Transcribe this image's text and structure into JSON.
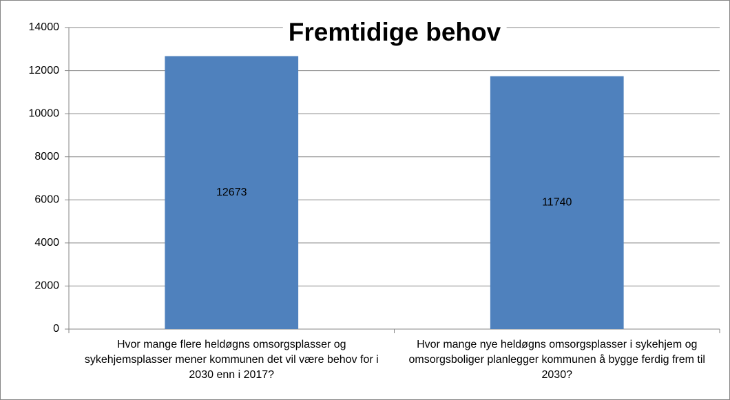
{
  "chart_data": {
    "type": "bar",
    "title": "Fremtidige behov",
    "categories": [
      "Hvor mange flere heldøgns omsorgsplasser og sykehjemsplasser mener kommunen det vil være behov for i 2030 enn i 2017?",
      "Hvor mange nye heldøgns omsorgsplasser i sykehjem og omsorgsboliger planlegger kommunen å bygge ferdig frem til 2030?"
    ],
    "values": [
      12673,
      11740
    ],
    "color": "#4f81bd",
    "ylim": [
      0,
      14000
    ],
    "yticks": [
      0,
      2000,
      4000,
      6000,
      8000,
      10000,
      12000,
      14000
    ],
    "grid": true
  }
}
